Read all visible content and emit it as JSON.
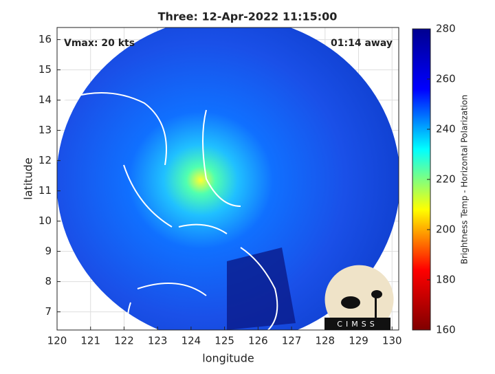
{
  "chart_data": {
    "type": "map",
    "title": "Three: 12-Apr-2022 11:15:00",
    "annotations": [
      "Vmax: 20 kts",
      "01:14 away"
    ],
    "xlabel": "longitude",
    "ylabel": "latitude",
    "xlim": [
      120,
      130.2
    ],
    "ylim": [
      6.4,
      16.4
    ],
    "xticks": [
      120,
      121,
      122,
      123,
      124,
      125,
      126,
      127,
      128,
      129,
      130
    ],
    "yticks": [
      7,
      8,
      9,
      10,
      11,
      12,
      13,
      14,
      15,
      16
    ],
    "grid": true,
    "colorbar": {
      "label": "Brightness Temp - Horizontal Polarization",
      "lim": [
        160,
        280
      ],
      "ticks": [
        160,
        180,
        200,
        220,
        240,
        260,
        280
      ],
      "colormap": [
        "#800000",
        "#ff0000",
        "#ffff00",
        "#00ffff",
        "#0000ff",
        "#00008f"
      ]
    },
    "logo": "CIMSS"
  }
}
